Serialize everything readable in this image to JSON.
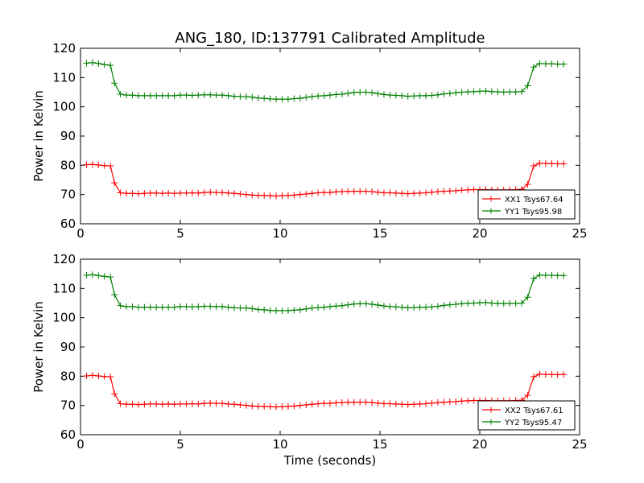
{
  "figure": {
    "title": "ANG_180, ID:137791 Calibrated Amplitude"
  },
  "chart_data": [
    {
      "type": "line",
      "title": "ANG_180, ID:137791 Calibrated Amplitude",
      "xlabel": "",
      "ylabel": "Power in Kelvin",
      "xlim": [
        0,
        25
      ],
      "ylim": [
        60,
        120
      ],
      "xticks": [
        "0",
        "5",
        "10",
        "15",
        "20",
        "25"
      ],
      "yticks": [
        "60",
        "70",
        "80",
        "90",
        "100",
        "110",
        "120"
      ],
      "grid": false,
      "legend_position": "lower-right",
      "x": [
        0.3,
        0.6,
        0.9,
        1.2,
        1.5,
        1.7,
        2.0,
        2.3,
        2.6,
        2.9,
        3.2,
        3.5,
        3.8,
        4.1,
        4.4,
        4.7,
        5.0,
        5.3,
        5.6,
        5.9,
        6.2,
        6.5,
        6.8,
        7.1,
        7.4,
        7.7,
        8.0,
        8.3,
        8.6,
        8.9,
        9.2,
        9.5,
        9.8,
        10.1,
        10.4,
        10.7,
        11.0,
        11.3,
        11.6,
        11.9,
        12.2,
        12.5,
        12.8,
        13.1,
        13.4,
        13.7,
        14.0,
        14.3,
        14.6,
        14.9,
        15.2,
        15.5,
        15.8,
        16.1,
        16.4,
        16.7,
        17.0,
        17.3,
        17.6,
        17.9,
        18.2,
        18.5,
        18.8,
        19.1,
        19.4,
        19.7,
        20.0,
        20.3,
        20.6,
        20.9,
        21.2,
        21.5,
        21.8,
        22.1,
        22.4,
        22.7,
        23.0,
        23.3,
        23.6,
        23.9,
        24.2
      ],
      "series": [
        {
          "name": "XX1 Tsys67.64",
          "color": "#ff0000",
          "values": [
            80.2,
            80.3,
            80.1,
            79.9,
            79.8,
            74.0,
            70.6,
            70.4,
            70.4,
            70.3,
            70.4,
            70.5,
            70.5,
            70.4,
            70.5,
            70.4,
            70.5,
            70.5,
            70.6,
            70.5,
            70.7,
            70.8,
            70.7,
            70.7,
            70.5,
            70.4,
            70.2,
            70.0,
            69.8,
            69.7,
            69.7,
            69.6,
            69.5,
            69.6,
            69.7,
            69.8,
            70.0,
            70.2,
            70.4,
            70.6,
            70.7,
            70.7,
            70.9,
            71.0,
            71.1,
            71.1,
            71.1,
            71.1,
            71.0,
            70.8,
            70.6,
            70.6,
            70.5,
            70.4,
            70.3,
            70.4,
            70.5,
            70.6,
            70.8,
            71.0,
            71.1,
            71.2,
            71.3,
            71.5,
            71.6,
            71.7,
            71.7,
            71.7,
            71.6,
            71.6,
            71.6,
            71.6,
            71.7,
            71.8,
            73.5,
            79.8,
            80.7,
            80.6,
            80.6,
            80.5,
            80.5
          ]
        },
        {
          "name": "YY1 Tsys95.98",
          "color": "#008000",
          "values": [
            114.9,
            115.1,
            114.8,
            114.4,
            114.2,
            108.1,
            104.3,
            104.0,
            104.0,
            103.8,
            103.8,
            103.8,
            103.8,
            103.8,
            103.8,
            103.8,
            104.0,
            104.0,
            103.9,
            104.0,
            104.1,
            104.1,
            104.0,
            104.0,
            103.8,
            103.6,
            103.5,
            103.5,
            103.3,
            103.0,
            102.9,
            102.7,
            102.6,
            102.6,
            102.6,
            102.8,
            102.9,
            103.2,
            103.5,
            103.7,
            103.8,
            104.0,
            104.2,
            104.3,
            104.6,
            104.9,
            105.0,
            105.0,
            104.8,
            104.5,
            104.2,
            104.0,
            103.9,
            103.8,
            103.6,
            103.7,
            103.8,
            103.8,
            103.9,
            104.1,
            104.4,
            104.6,
            104.8,
            105.0,
            105.1,
            105.2,
            105.3,
            105.4,
            105.2,
            105.1,
            105.0,
            105.1,
            105.1,
            105.2,
            107.2,
            113.6,
            114.8,
            114.7,
            114.7,
            114.6,
            114.6
          ]
        }
      ]
    },
    {
      "type": "line",
      "title": "",
      "xlabel": "Time (seconds)",
      "ylabel": "Power in Kelvin",
      "xlim": [
        0,
        25
      ],
      "ylim": [
        60,
        120
      ],
      "xticks": [
        "0",
        "5",
        "10",
        "15",
        "20",
        "25"
      ],
      "yticks": [
        "60",
        "70",
        "80",
        "90",
        "100",
        "110",
        "120"
      ],
      "grid": false,
      "legend_position": "lower-right",
      "x": [
        0.3,
        0.6,
        0.9,
        1.2,
        1.5,
        1.7,
        2.0,
        2.3,
        2.6,
        2.9,
        3.2,
        3.5,
        3.8,
        4.1,
        4.4,
        4.7,
        5.0,
        5.3,
        5.6,
        5.9,
        6.2,
        6.5,
        6.8,
        7.1,
        7.4,
        7.7,
        8.0,
        8.3,
        8.6,
        8.9,
        9.2,
        9.5,
        9.8,
        10.1,
        10.4,
        10.7,
        11.0,
        11.3,
        11.6,
        11.9,
        12.2,
        12.5,
        12.8,
        13.1,
        13.4,
        13.7,
        14.0,
        14.3,
        14.6,
        14.9,
        15.2,
        15.5,
        15.8,
        16.1,
        16.4,
        16.7,
        17.0,
        17.3,
        17.6,
        17.9,
        18.2,
        18.5,
        18.8,
        19.1,
        19.4,
        19.7,
        20.0,
        20.3,
        20.6,
        20.9,
        21.2,
        21.5,
        21.8,
        22.1,
        22.4,
        22.7,
        23.0,
        23.3,
        23.6,
        23.9,
        24.2
      ],
      "series": [
        {
          "name": "XX2 Tsys67.61",
          "color": "#ff0000",
          "values": [
            80.1,
            80.3,
            80.1,
            79.9,
            79.8,
            74.0,
            70.6,
            70.4,
            70.4,
            70.3,
            70.4,
            70.5,
            70.5,
            70.4,
            70.5,
            70.4,
            70.5,
            70.5,
            70.6,
            70.5,
            70.7,
            70.8,
            70.7,
            70.7,
            70.5,
            70.4,
            70.2,
            70.0,
            69.8,
            69.7,
            69.7,
            69.6,
            69.5,
            69.6,
            69.7,
            69.8,
            70.0,
            70.2,
            70.4,
            70.6,
            70.7,
            70.7,
            70.9,
            71.0,
            71.1,
            71.1,
            71.1,
            71.1,
            71.0,
            70.8,
            70.6,
            70.6,
            70.5,
            70.4,
            70.3,
            70.4,
            70.5,
            70.6,
            70.8,
            71.0,
            71.1,
            71.2,
            71.3,
            71.5,
            71.6,
            71.7,
            71.7,
            71.7,
            71.6,
            71.6,
            71.6,
            71.6,
            71.7,
            71.8,
            73.5,
            79.8,
            80.7,
            80.6,
            80.6,
            80.5,
            80.6
          ]
        },
        {
          "name": "YY2 Tsys95.47",
          "color": "#008000",
          "values": [
            114.5,
            114.7,
            114.4,
            114.1,
            113.9,
            107.9,
            104.1,
            103.8,
            103.8,
            103.6,
            103.6,
            103.6,
            103.6,
            103.6,
            103.6,
            103.6,
            103.8,
            103.8,
            103.7,
            103.8,
            103.9,
            103.9,
            103.8,
            103.8,
            103.6,
            103.4,
            103.3,
            103.3,
            103.1,
            102.8,
            102.7,
            102.5,
            102.4,
            102.4,
            102.4,
            102.6,
            102.7,
            103.0,
            103.3,
            103.5,
            103.6,
            103.8,
            104.0,
            104.1,
            104.4,
            104.7,
            104.8,
            104.8,
            104.6,
            104.3,
            104.0,
            103.8,
            103.7,
            103.6,
            103.4,
            103.5,
            103.6,
            103.6,
            103.7,
            103.9,
            104.2,
            104.4,
            104.6,
            104.8,
            104.9,
            105.0,
            105.1,
            105.2,
            105.0,
            104.9,
            104.8,
            104.9,
            104.9,
            105.0,
            107.0,
            113.4,
            114.6,
            114.5,
            114.5,
            114.4,
            114.4
          ]
        }
      ]
    }
  ]
}
